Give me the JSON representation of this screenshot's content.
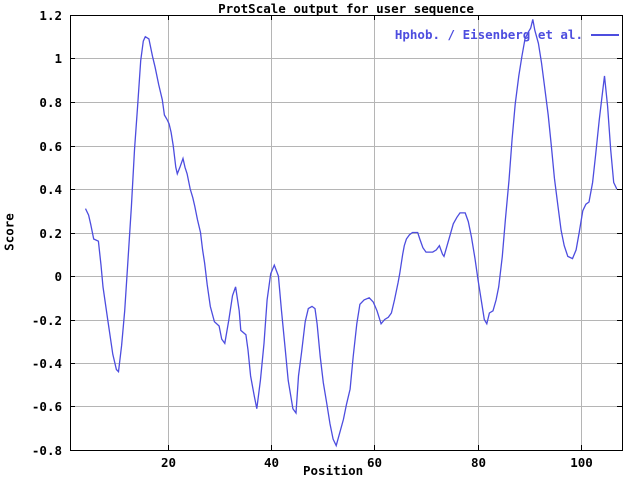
{
  "colors": {
    "background": "#ffffff",
    "axis": "#000000",
    "grid": "#b5b5b5",
    "text": "#000000",
    "line": "#4d4ddf"
  },
  "chart_data": {
    "type": "line",
    "title": "ProtScale output for user sequence",
    "xlabel": "Position",
    "ylabel": "Score",
    "legend": {
      "label": "Hphob. / Eisenberg et al.",
      "position": "top-right"
    },
    "xlim": [
      1,
      108
    ],
    "ylim": [
      -0.8,
      1.2
    ],
    "x_ticks": [
      20,
      40,
      60,
      80,
      100
    ],
    "y_ticks": [
      -0.8,
      -0.6,
      -0.4,
      -0.2,
      0,
      0.2,
      0.4,
      0.6,
      0.8,
      1,
      1.2
    ],
    "grid": true,
    "series": [
      {
        "name": "Hphob. / Eisenberg et al.",
        "color": "#4d4ddf",
        "points": [
          [
            4.0,
            0.31
          ],
          [
            4.6,
            0.28
          ],
          [
            5.0,
            0.24
          ],
          [
            5.6,
            0.17
          ],
          [
            6.5,
            0.16
          ],
          [
            7.0,
            0.05
          ],
          [
            7.4,
            -0.05
          ],
          [
            8.3,
            -0.2
          ],
          [
            9.3,
            -0.36
          ],
          [
            10.0,
            -0.43
          ],
          [
            10.4,
            -0.44
          ],
          [
            11.0,
            -0.32
          ],
          [
            11.6,
            -0.16
          ],
          [
            12.2,
            0.06
          ],
          [
            12.9,
            0.32
          ],
          [
            13.5,
            0.58
          ],
          [
            14.1,
            0.78
          ],
          [
            14.7,
            0.99
          ],
          [
            15.2,
            1.08
          ],
          [
            15.6,
            1.1
          ],
          [
            16.3,
            1.09
          ],
          [
            17.0,
            1.01
          ],
          [
            17.5,
            0.96
          ],
          [
            18.2,
            0.88
          ],
          [
            18.9,
            0.81
          ],
          [
            19.3,
            0.74
          ],
          [
            19.8,
            0.72
          ],
          [
            20.2,
            0.7
          ],
          [
            20.6,
            0.66
          ],
          [
            21.0,
            0.6
          ],
          [
            21.5,
            0.5
          ],
          [
            21.8,
            0.47
          ],
          [
            22.3,
            0.5
          ],
          [
            22.9,
            0.54
          ],
          [
            23.3,
            0.5
          ],
          [
            23.7,
            0.47
          ],
          [
            24.3,
            0.4
          ],
          [
            24.8,
            0.36
          ],
          [
            25.2,
            0.32
          ],
          [
            25.7,
            0.26
          ],
          [
            26.3,
            0.2
          ],
          [
            26.7,
            0.12
          ],
          [
            27.1,
            0.06
          ],
          [
            27.6,
            -0.04
          ],
          [
            28.2,
            -0.14
          ],
          [
            29.0,
            -0.21
          ],
          [
            29.9,
            -0.23
          ],
          [
            30.4,
            -0.29
          ],
          [
            31.0,
            -0.31
          ],
          [
            31.8,
            -0.2
          ],
          [
            32.5,
            -0.09
          ],
          [
            33.1,
            -0.05
          ],
          [
            33.8,
            -0.16
          ],
          [
            34.1,
            -0.25
          ],
          [
            35.1,
            -0.27
          ],
          [
            35.5,
            -0.34
          ],
          [
            36.0,
            -0.46
          ],
          [
            36.7,
            -0.55
          ],
          [
            37.2,
            -0.61
          ],
          [
            37.9,
            -0.48
          ],
          [
            38.6,
            -0.31
          ],
          [
            39.2,
            -0.11
          ],
          [
            39.9,
            0.01
          ],
          [
            40.6,
            0.05
          ],
          [
            41.4,
            0.0
          ],
          [
            42.0,
            -0.16
          ],
          [
            42.7,
            -0.33
          ],
          [
            43.3,
            -0.48
          ],
          [
            44.2,
            -0.61
          ],
          [
            44.8,
            -0.63
          ],
          [
            45.3,
            -0.46
          ],
          [
            45.9,
            -0.35
          ],
          [
            46.6,
            -0.21
          ],
          [
            47.2,
            -0.15
          ],
          [
            47.9,
            -0.14
          ],
          [
            48.5,
            -0.15
          ],
          [
            48.9,
            -0.22
          ],
          [
            49.5,
            -0.37
          ],
          [
            50.1,
            -0.49
          ],
          [
            50.8,
            -0.59
          ],
          [
            51.4,
            -0.68
          ],
          [
            52.0,
            -0.75
          ],
          [
            52.6,
            -0.78
          ],
          [
            53.3,
            -0.72
          ],
          [
            54.0,
            -0.66
          ],
          [
            54.6,
            -0.59
          ],
          [
            55.3,
            -0.52
          ],
          [
            55.9,
            -0.37
          ],
          [
            56.6,
            -0.22
          ],
          [
            57.2,
            -0.13
          ],
          [
            58.0,
            -0.11
          ],
          [
            59.0,
            -0.1
          ],
          [
            59.8,
            -0.12
          ],
          [
            60.5,
            -0.16
          ],
          [
            61.3,
            -0.22
          ],
          [
            62.0,
            -0.2
          ],
          [
            62.7,
            -0.19
          ],
          [
            63.3,
            -0.17
          ],
          [
            63.9,
            -0.11
          ],
          [
            64.6,
            -0.03
          ],
          [
            64.9,
            0.01
          ],
          [
            65.5,
            0.1
          ],
          [
            65.8,
            0.14
          ],
          [
            66.2,
            0.17
          ],
          [
            66.8,
            0.19
          ],
          [
            67.4,
            0.2
          ],
          [
            68.4,
            0.2
          ],
          [
            68.8,
            0.17
          ],
          [
            69.4,
            0.13
          ],
          [
            70.0,
            0.11
          ],
          [
            71.3,
            0.11
          ],
          [
            72.0,
            0.12
          ],
          [
            72.6,
            0.14
          ],
          [
            73.2,
            0.1
          ],
          [
            73.5,
            0.09
          ],
          [
            74.1,
            0.14
          ],
          [
            74.7,
            0.19
          ],
          [
            75.3,
            0.24
          ],
          [
            76.0,
            0.27
          ],
          [
            76.6,
            0.29
          ],
          [
            77.6,
            0.29
          ],
          [
            78.2,
            0.25
          ],
          [
            78.8,
            0.18
          ],
          [
            79.5,
            0.08
          ],
          [
            80.1,
            -0.02
          ],
          [
            80.7,
            -0.11
          ],
          [
            81.3,
            -0.2
          ],
          [
            81.8,
            -0.22
          ],
          [
            82.3,
            -0.17
          ],
          [
            83.0,
            -0.16
          ],
          [
            83.6,
            -0.11
          ],
          [
            84.1,
            -0.05
          ],
          [
            84.8,
            0.09
          ],
          [
            85.4,
            0.26
          ],
          [
            86.1,
            0.44
          ],
          [
            86.7,
            0.63
          ],
          [
            87.3,
            0.79
          ],
          [
            88.0,
            0.92
          ],
          [
            88.6,
            1.01
          ],
          [
            89.2,
            1.09
          ],
          [
            89.8,
            1.12
          ],
          [
            90.3,
            1.14
          ],
          [
            90.7,
            1.18
          ],
          [
            91.1,
            1.13
          ],
          [
            91.8,
            1.07
          ],
          [
            92.4,
            0.98
          ],
          [
            93.0,
            0.87
          ],
          [
            93.7,
            0.74
          ],
          [
            94.3,
            0.6
          ],
          [
            94.9,
            0.45
          ],
          [
            95.6,
            0.32
          ],
          [
            96.2,
            0.21
          ],
          [
            96.8,
            0.14
          ],
          [
            97.5,
            0.09
          ],
          [
            98.4,
            0.08
          ],
          [
            99.1,
            0.12
          ],
          [
            99.7,
            0.2
          ],
          [
            100.4,
            0.3
          ],
          [
            101.0,
            0.33
          ],
          [
            101.6,
            0.34
          ],
          [
            102.3,
            0.43
          ],
          [
            102.9,
            0.56
          ],
          [
            103.6,
            0.72
          ],
          [
            104.2,
            0.84
          ],
          [
            104.6,
            0.92
          ],
          [
            105.2,
            0.78
          ],
          [
            105.8,
            0.58
          ],
          [
            106.4,
            0.43
          ],
          [
            107.0,
            0.4
          ]
        ]
      }
    ]
  }
}
